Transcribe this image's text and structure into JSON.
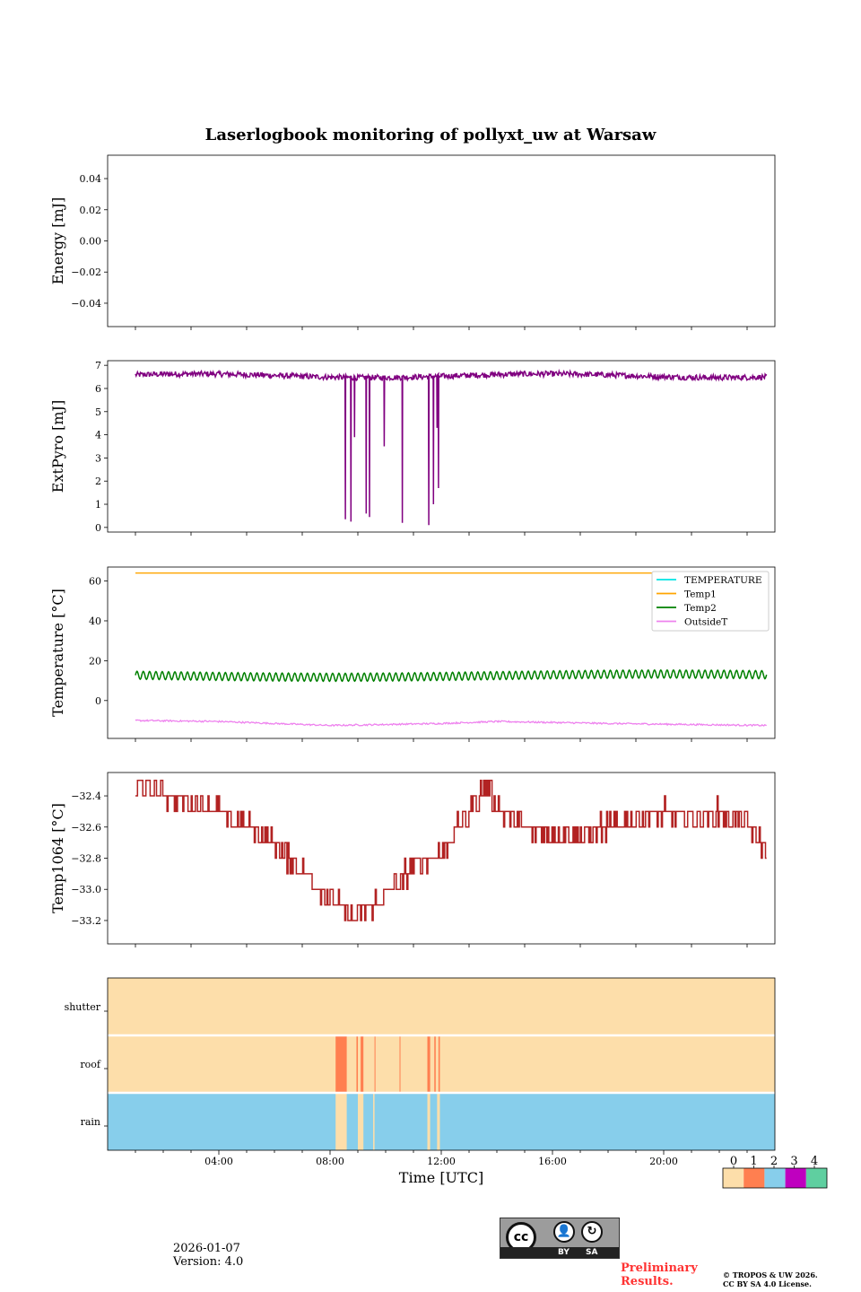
{
  "title": "Laserlogbook monitoring of pollyxt_uw at Warsaw",
  "colors": {
    "extpyro": "#800080",
    "temperature": "#00e5e5",
    "temp1": "#ffa500",
    "temp2": "#008000",
    "outsideT": "#ee82ee",
    "temp1064": "#b22222",
    "status": [
      "#fddeaa",
      "#ff7f50",
      "#87ceeb",
      "#bf00bf",
      "#5fcfa0"
    ]
  },
  "chart_data": [
    {
      "type": "line",
      "name": "energy",
      "ylabel": "Energy [mJ]",
      "ylim": [
        -0.055,
        0.055
      ],
      "yticks": [
        0.04,
        0.02,
        0.0,
        -0.02,
        -0.04
      ],
      "ytick_labels": [
        "0.04",
        "0.02",
        "0.00",
        "−0.02",
        "−0.04"
      ],
      "series": []
    },
    {
      "type": "line",
      "name": "extpyro",
      "ylabel": "ExtPyro [mJ]",
      "ylim": [
        -0.2,
        7.2
      ],
      "yticks": [
        0,
        1,
        2,
        3,
        4,
        5,
        6,
        7
      ],
      "ytick_labels": [
        "0",
        "1",
        "2",
        "3",
        "4",
        "5",
        "6",
        "7"
      ],
      "baseline": 6.55,
      "noise": 0.12,
      "x_range_hours": [
        1.0,
        23.7
      ],
      "dropouts": [
        {
          "t": 8.55,
          "min": 0.35
        },
        {
          "t": 8.75,
          "min": 0.25
        },
        {
          "t": 8.88,
          "min": 3.9
        },
        {
          "t": 9.3,
          "min": 0.6
        },
        {
          "t": 9.42,
          "min": 0.45
        },
        {
          "t": 9.95,
          "min": 3.5
        },
        {
          "t": 10.6,
          "min": 0.2
        },
        {
          "t": 11.55,
          "min": 0.1
        },
        {
          "t": 11.72,
          "min": 1.0
        },
        {
          "t": 11.9,
          "min": 1.7
        },
        {
          "t": 11.85,
          "min": 4.3
        }
      ]
    },
    {
      "type": "line",
      "name": "temperature",
      "ylabel": "Temperature [°C]",
      "ylim": [
        -19,
        67
      ],
      "yticks": [
        0,
        20,
        40,
        60
      ],
      "ytick_labels": [
        "0",
        "20",
        "40",
        "60"
      ],
      "legend": [
        "TEMPERATURE",
        "Temp1",
        "Temp2",
        "OutsideT"
      ],
      "legend_position": "upper right",
      "series": [
        {
          "name": "TEMPERATURE",
          "values": []
        },
        {
          "name": "Temp1",
          "constant": 64
        },
        {
          "name": "Temp2",
          "mean": 12.5,
          "amplitude": 2.0,
          "cycles": 100
        },
        {
          "name": "OutsideT",
          "anchors": [
            [
              1,
              -10
            ],
            [
              4,
              -10.5
            ],
            [
              8,
              -12.5
            ],
            [
              12,
              -11.5
            ],
            [
              14,
              -10.5
            ],
            [
              18,
              -11.5
            ],
            [
              23.7,
              -12.5
            ]
          ]
        }
      ]
    },
    {
      "type": "line",
      "name": "temp1064",
      "ylabel": "Temp1064 [°C]",
      "ylim": [
        -33.35,
        -32.25
      ],
      "yticks": [
        -32.4,
        -32.6,
        -32.8,
        -33.0,
        -33.2
      ],
      "ytick_labels": [
        "−32.4",
        "−32.6",
        "−32.8",
        "−33.0",
        "−33.2"
      ],
      "anchors": [
        [
          1.0,
          -32.35
        ],
        [
          1.6,
          -32.38
        ],
        [
          2.3,
          -32.4
        ],
        [
          3.0,
          -32.45
        ],
        [
          4.0,
          -32.5
        ],
        [
          5.0,
          -32.6
        ],
        [
          6.0,
          -32.7
        ],
        [
          7.0,
          -32.9
        ],
        [
          8.0,
          -33.05
        ],
        [
          8.8,
          -33.2
        ],
        [
          9.5,
          -33.1
        ],
        [
          10.2,
          -33.0
        ],
        [
          11.0,
          -32.85
        ],
        [
          12.0,
          -32.75
        ],
        [
          13.0,
          -32.5
        ],
        [
          13.6,
          -32.35
        ],
        [
          14.2,
          -32.5
        ],
        [
          15.0,
          -32.6
        ],
        [
          16.0,
          -32.65
        ],
        [
          17.0,
          -32.65
        ],
        [
          18.0,
          -32.6
        ],
        [
          19.0,
          -32.55
        ],
        [
          20.0,
          -32.5
        ],
        [
          21.0,
          -32.55
        ],
        [
          22.0,
          -32.5
        ],
        [
          23.0,
          -32.6
        ],
        [
          23.7,
          -32.75
        ]
      ]
    },
    {
      "type": "heatmap",
      "name": "status",
      "rows": [
        "shutter",
        "roof",
        "rain"
      ],
      "xlabel": "Time [UTC]",
      "xlim_hours": [
        0,
        24
      ],
      "xticks_hours": [
        4,
        8,
        12,
        16,
        20
      ],
      "xtick_labels": [
        "04:00",
        "08:00",
        "12:00",
        "16:00",
        "20:00"
      ],
      "shutter_blocks": [],
      "roof_blocks": [
        [
          8.2,
          8.6
        ],
        [
          8.95,
          9.0
        ],
        [
          9.1,
          9.2
        ],
        [
          9.6,
          9.62
        ],
        [
          10.5,
          10.52
        ],
        [
          11.5,
          11.6
        ],
        [
          11.75,
          11.8
        ],
        [
          11.9,
          11.95
        ]
      ],
      "rain_dry_blocks": [
        [
          8.2,
          8.6
        ],
        [
          9.0,
          9.2
        ],
        [
          9.55,
          9.6
        ],
        [
          11.5,
          11.6
        ],
        [
          11.85,
          11.95
        ]
      ],
      "colorbar_ticks": [
        "0",
        "1",
        "2",
        "3",
        "4"
      ]
    }
  ],
  "footer": {
    "date": "2026-01-07",
    "version": "Version: 4.0",
    "preliminary_line1": "Preliminary",
    "preliminary_line2": "Results.",
    "copyright_line1": "© TROPOS & UW 2026.",
    "copyright_line2": "CC BY SA 4.0 License.",
    "license_by": "BY",
    "license_sa": "SA",
    "license_cc": "cc"
  }
}
